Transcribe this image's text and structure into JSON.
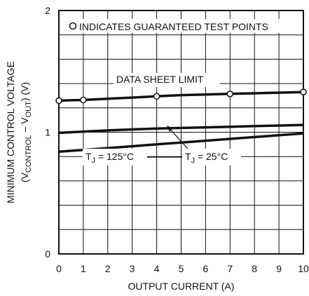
{
  "chart_data": {
    "type": "line",
    "xlabel": "OUTPUT CURRENT (A)",
    "ylabel_line1": "MINIMUM CONTROL VOLTAGE",
    "ylabel_line2": {
      "open": "(V",
      "sub1": "CONTROL",
      "mid": " – V",
      "sub2": "OUT",
      "close": ") (V)"
    },
    "xlim": [
      0,
      10
    ],
    "ylim": [
      0,
      2
    ],
    "x_ticks": [
      "0",
      "1",
      "2",
      "3",
      "4",
      "5",
      "6",
      "7",
      "8",
      "9",
      "10"
    ],
    "y_tick_labels": [
      {
        "value": 0,
        "label": "0"
      },
      {
        "value": 1,
        "label": "1"
      },
      {
        "value": 2,
        "label": "2"
      }
    ],
    "grid": true,
    "series": [
      {
        "name": "DATA SHEET LIMIT",
        "x": [
          0,
          1,
          2,
          3,
          4,
          5,
          6,
          7,
          8,
          9,
          10
        ],
        "y": [
          1.26,
          1.265,
          1.275,
          1.285,
          1.295,
          1.305,
          1.31,
          1.315,
          1.32,
          1.325,
          1.33
        ],
        "markers_x": [
          0,
          1,
          4,
          7,
          10
        ],
        "markers_y": [
          1.26,
          1.265,
          1.295,
          1.315,
          1.33
        ]
      },
      {
        "name": "TJ = 25°C",
        "x": [
          0,
          1,
          2,
          3,
          4,
          5,
          6,
          7,
          8,
          9,
          10
        ],
        "y": [
          0.995,
          1.005,
          1.015,
          1.023,
          1.03,
          1.035,
          1.04,
          1.045,
          1.05,
          1.055,
          1.06
        ]
      },
      {
        "name": "TJ = 125°C",
        "x": [
          0,
          1,
          2,
          3,
          4,
          5,
          6,
          7,
          8,
          9,
          10
        ],
        "y": [
          0.84,
          0.855,
          0.87,
          0.885,
          0.9,
          0.915,
          0.93,
          0.945,
          0.96,
          0.975,
          0.99
        ]
      }
    ],
    "annotations": {
      "legend_text": "INDICATES GUARANTEED TEST POINTS",
      "limit_label": "DATA SHEET LIMIT",
      "tj125": {
        "t": "T",
        "sub": "J",
        "rest": " = 125°C"
      },
      "tj25": {
        "t": "T",
        "sub": "J",
        "rest": " = 25°C"
      }
    }
  }
}
